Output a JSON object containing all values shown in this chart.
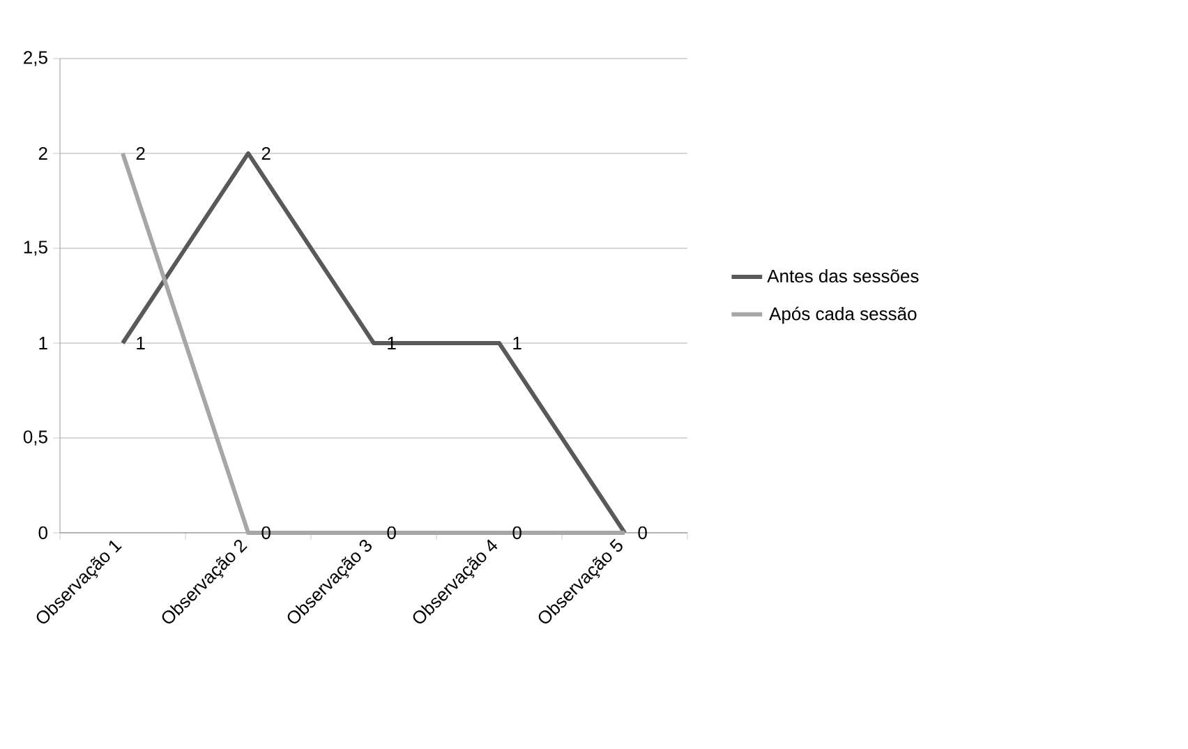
{
  "chart_data": {
    "type": "line",
    "categories": [
      "Observação 1",
      "Observação 2",
      "Observação 3",
      "Observação 4",
      "Observação 5"
    ],
    "series": [
      {
        "name": "Antes das sessões",
        "color": "#595959",
        "values": [
          1,
          2,
          1,
          1,
          0
        ],
        "value_labels": [
          "1",
          "2",
          "1",
          "1",
          "0"
        ]
      },
      {
        "name": "Após cada sessão",
        "color": "#a6a6a6",
        "values": [
          2,
          0,
          0,
          0,
          0
        ],
        "value_labels": [
          "2",
          "0",
          "0",
          "0",
          null
        ]
      }
    ],
    "ylim": [
      0,
      2.5
    ],
    "yticks": [
      0,
      {
        "value": 0.5,
        "label": "0,5"
      },
      1,
      {
        "value": 1.5,
        "label": "1,5"
      },
      2,
      {
        "value": 2.5,
        "label": "2,5"
      }
    ],
    "grid": "y",
    "legend": "right",
    "marker": "none",
    "line_style": "solid"
  }
}
